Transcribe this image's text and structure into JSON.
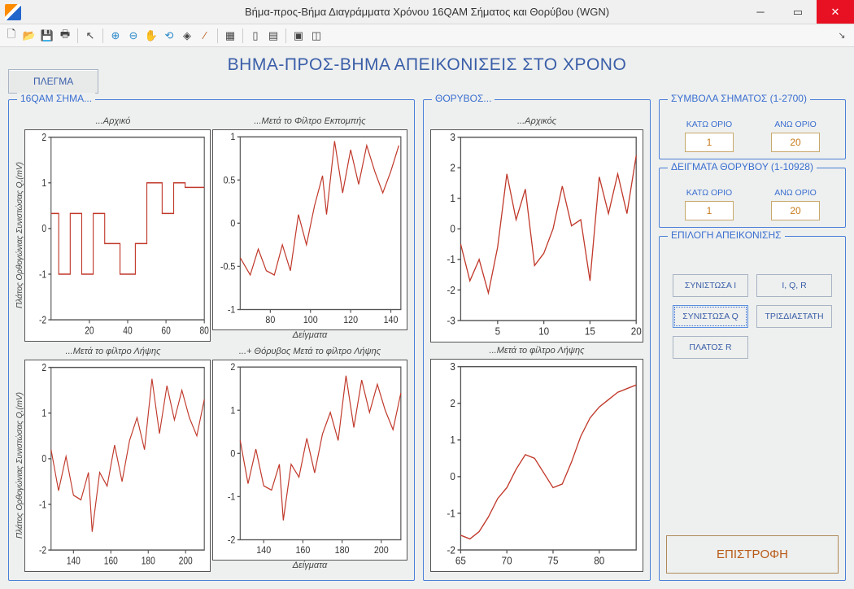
{
  "window": {
    "title": "Βήμα-προς-Βήμα Διαγράμματα Χρόνου 16QAM Σήματος και Θορύβου (WGN)",
    "bg_color": "#eef0ef",
    "accent_color": "#3a5ea8",
    "danger_color": "#e81123"
  },
  "toolbar": {
    "icons": [
      "new",
      "open",
      "save",
      "print",
      "|",
      "arrow",
      "|",
      "zoom-in",
      "zoom-out",
      "pan",
      "rotate",
      "cursor",
      "brush",
      "|",
      "grid",
      "|",
      "rect",
      "layout",
      "|",
      "stop",
      "tile"
    ]
  },
  "heading": "ΒΗΜΑ-ΠΡΟΣ-ΒΗΜΑ ΑΠΕΙΚΟΝΙΣΕΙΣ  ΣΤΟ ΧΡΟΝΟ",
  "plegma_label": "ΠΛΕΓΜΑ",
  "panels": {
    "signal": {
      "legend": "16QAM ΣΗΜΑ...",
      "ylabel": "Πλάτος Ορθογώνιας Συνιστώσας Q,(mV)",
      "xlabel": "Δείγματα",
      "charts": {
        "original": {
          "title": "...Αρχικό",
          "type": "line",
          "xlim": [
            0,
            80
          ],
          "ylim": [
            -2,
            2
          ],
          "xticks": [
            20,
            40,
            60,
            80
          ],
          "yticks": [
            -2,
            -1,
            0,
            1,
            2
          ],
          "series_color": "#c0392b",
          "x": [
            0,
            4,
            4,
            10,
            10,
            16,
            16,
            22,
            22,
            28,
            28,
            36,
            36,
            44,
            44,
            50,
            50,
            58,
            58,
            64,
            64,
            70,
            70,
            80
          ],
          "y": [
            0.33,
            0.33,
            -1,
            -1,
            0.33,
            0.33,
            -1,
            -1,
            0.33,
            0.33,
            -0.33,
            -0.33,
            -1,
            -1,
            -0.33,
            -0.33,
            1,
            1,
            0.33,
            0.33,
            1,
            1,
            0.9,
            0.9
          ]
        },
        "after_tx": {
          "title": "...Μετά το Φίλτρο Εκπομπής",
          "type": "line",
          "xlim": [
            65,
            145
          ],
          "ylim": [
            -1,
            1
          ],
          "xticks": [
            80,
            100,
            120,
            140
          ],
          "yticks": [
            -1,
            -0.5,
            0,
            0.5,
            1
          ],
          "series_color": "#c0392b",
          "x": [
            65,
            70,
            74,
            78,
            82,
            86,
            90,
            94,
            98,
            102,
            106,
            108,
            112,
            116,
            120,
            124,
            128,
            132,
            136,
            140,
            144
          ],
          "y": [
            -0.4,
            -0.6,
            -0.3,
            -0.55,
            -0.6,
            -0.25,
            -0.55,
            0.1,
            -0.25,
            0.2,
            0.55,
            0.1,
            0.95,
            0.35,
            0.85,
            0.45,
            0.9,
            0.6,
            0.35,
            0.6,
            0.9
          ]
        },
        "after_rx": {
          "title": "...Μετά το φίλτρο Λήψης",
          "type": "line",
          "xlim": [
            128,
            210
          ],
          "ylim": [
            -2,
            2
          ],
          "xticks": [
            140,
            160,
            180,
            200
          ],
          "yticks": [
            -2,
            -1,
            0,
            1,
            2
          ],
          "series_color": "#c0392b",
          "x": [
            128,
            132,
            136,
            140,
            144,
            148,
            150,
            154,
            158,
            162,
            166,
            170,
            174,
            178,
            182,
            186,
            190,
            194,
            198,
            202,
            206,
            210
          ],
          "y": [
            0.2,
            -0.7,
            0.05,
            -0.8,
            -0.9,
            -0.3,
            -1.6,
            -0.3,
            -0.6,
            0.3,
            -0.5,
            0.4,
            0.9,
            0.2,
            1.75,
            0.55,
            1.6,
            0.85,
            1.5,
            0.9,
            0.5,
            1.3
          ]
        },
        "plus_noise": {
          "title": "...+ Θόρυβος Μετά το φίλτρο Λήψης",
          "type": "line",
          "xlim": [
            128,
            210
          ],
          "ylim": [
            -2,
            2
          ],
          "xticks": [
            140,
            160,
            180,
            200
          ],
          "yticks": [
            -2,
            -1,
            0,
            1,
            2
          ],
          "series_color": "#c0392b",
          "x": [
            128,
            132,
            136,
            140,
            144,
            148,
            150,
            154,
            158,
            162,
            166,
            170,
            174,
            178,
            182,
            186,
            190,
            194,
            198,
            202,
            206,
            210
          ],
          "y": [
            0.3,
            -0.7,
            0.1,
            -0.75,
            -0.85,
            -0.25,
            -1.55,
            -0.25,
            -0.55,
            0.35,
            -0.45,
            0.45,
            0.95,
            0.3,
            1.8,
            0.6,
            1.7,
            0.95,
            1.6,
            1.0,
            0.55,
            1.4
          ]
        }
      }
    },
    "noise": {
      "legend": "ΘΟΡΥΒΟΣ...",
      "charts": {
        "original": {
          "title": "...Αρχικός",
          "type": "line",
          "xlim": [
            1,
            20
          ],
          "ylim": [
            -3,
            3
          ],
          "xticks": [
            5,
            10,
            15,
            20
          ],
          "yticks": [
            -3,
            -2,
            -1,
            0,
            1,
            2,
            3
          ],
          "series_color": "#c0392b",
          "x": [
            1,
            2,
            3,
            4,
            5,
            6,
            7,
            8,
            9,
            10,
            11,
            12,
            13,
            14,
            15,
            16,
            17,
            18,
            19,
            20
          ],
          "y": [
            -0.5,
            -1.7,
            -1.0,
            -2.1,
            -0.6,
            1.8,
            0.3,
            1.3,
            -1.2,
            -0.8,
            0.0,
            1.4,
            0.1,
            0.3,
            -1.7,
            1.7,
            0.5,
            1.8,
            0.5,
            2.4
          ]
        },
        "after_rx": {
          "title": "...Μετά το φίλτρο Λήψης",
          "type": "line",
          "xlim": [
            65,
            84
          ],
          "ylim": [
            -2,
            3
          ],
          "xticks": [
            65,
            70,
            75,
            80
          ],
          "yticks": [
            -2,
            -1,
            0,
            1,
            2,
            3
          ],
          "series_color": "#c0392b",
          "x": [
            65,
            66,
            67,
            68,
            69,
            70,
            71,
            72,
            73,
            74,
            75,
            76,
            77,
            78,
            79,
            80,
            81,
            82,
            83,
            84
          ],
          "y": [
            -1.6,
            -1.7,
            -1.5,
            -1.1,
            -0.6,
            -0.3,
            0.2,
            0.6,
            0.5,
            0.1,
            -0.3,
            -0.2,
            0.4,
            1.1,
            1.6,
            1.9,
            2.1,
            2.3,
            2.4,
            2.5
          ]
        }
      }
    }
  },
  "symbols_panel": {
    "legend": "ΣΥΜΒΟΛΑ ΣΗΜΑΤΟΣ (1-2700)",
    "low_label": "ΚΑΤΩ ΟΡΙΟ",
    "high_label": "ΑΝΩ ΟΡΙΟ",
    "low": "1",
    "high": "20"
  },
  "samples_panel": {
    "legend": "ΔΕΙΓΜΑΤΑ ΘΟΡΥΒΟΥ (1-10928)",
    "low_label": "ΚΑΤΩ ΟΡΙΟ",
    "high_label": "ΑΝΩ ΟΡΙΟ",
    "low": "1",
    "high": "20"
  },
  "view_panel": {
    "legend": "ΕΠΙΛΟΓΗ ΑΠΕΙΚΟΝΙΣΗΣ",
    "btn_i": "ΣΥΝΙΣΤΩΣΑ I",
    "btn_iqr": "I, Q, R",
    "btn_q": "ΣΥΝΙΣΤΩΣΑ Q",
    "btn_3d": "ΤΡΙΣΔΙΑΣΤΑΤΗ",
    "btn_r": "ΠΛΑΤΟΣ R"
  },
  "return_label": "ΕΠΙΣΤΡΟΦΗ"
}
